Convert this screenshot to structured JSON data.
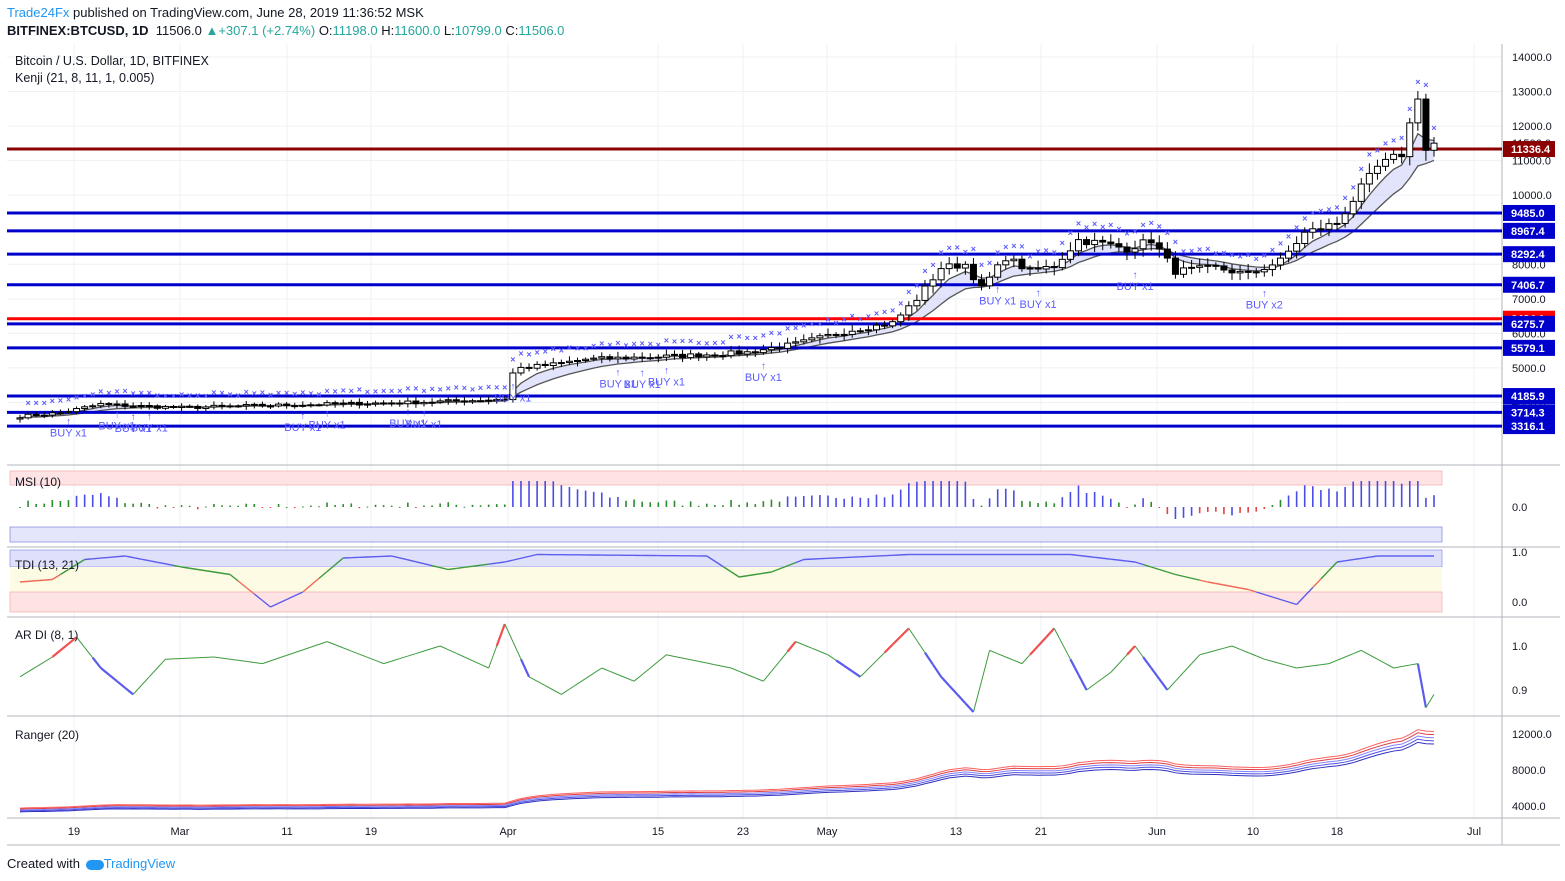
{
  "header": {
    "brand": "Trade24Fx",
    "published": "published on TradingView.com, June 28, 2019 11:36:52 MSK",
    "symbol": "BITFINEX:BTCUSD, 1D",
    "last": "11506.0",
    "change_arrow": "▲",
    "change": "+307.1 (+2.74%)",
    "o_label": "O:",
    "o": "11198.0",
    "h_label": "H:",
    "h": "11600.0",
    "l_label": "L:",
    "l": "10799.0",
    "c_label": "C:",
    "c": "11506.0"
  },
  "legend": {
    "title": "Bitcoin / U.S. Dollar, 1D, BITFINEX",
    "indicator": "Kenji (21, 8, 11, 1, 0.005)"
  },
  "footer": {
    "created": "Created with",
    "brand": "TradingView"
  },
  "colors": {
    "up": "#ffffff",
    "down": "#000000",
    "level_blue": "#0000cc",
    "level_darkred": "#8b0000",
    "level_red": "#ff0000",
    "marker": "#5b5bff",
    "band": "#c9cdf5",
    "green": "#2e8b2e",
    "red_line": "#f05a5a"
  },
  "chart_data": [
    {
      "type": "candlestick",
      "title": "Bitcoin / U.S. Dollar, 1D, BITFINEX",
      "x_ticks": [
        "19",
        "Mar",
        "11",
        "19",
        "Apr",
        "15",
        "23",
        "May",
        "13",
        "21",
        "Jun",
        "10",
        "18",
        "Jul"
      ],
      "y_ticks": [
        4000,
        5000,
        6000,
        7000,
        8000,
        9000,
        10000,
        11000,
        12000,
        13000,
        14000
      ],
      "y_tick_labels": [
        "4000.0",
        "5000.0",
        "6000.0",
        "7000.0",
        "8000.0",
        "9000.0",
        "10000.0",
        "11000.0",
        "12000.0",
        "13000.0",
        "14000.0"
      ],
      "ylim": [
        3200,
        14200
      ],
      "last_price_label": "11506.0",
      "levels": [
        {
          "value": 11336.4,
          "label": "11336.4",
          "color": "darkred"
        },
        {
          "value": 9485.0,
          "label": "9485.0",
          "color": "blue"
        },
        {
          "value": 8967.4,
          "label": "8967.4",
          "color": "blue"
        },
        {
          "value": 8292.4,
          "label": "8292.4",
          "color": "blue"
        },
        {
          "value": 7406.7,
          "label": "7406.7",
          "color": "blue"
        },
        {
          "value": 6424.1,
          "label": "6424.1",
          "color": "red"
        },
        {
          "value": 6275.7,
          "label": "6275.7",
          "color": "blue"
        },
        {
          "value": 5579.1,
          "label": "5579.1",
          "color": "blue"
        },
        {
          "value": 4185.9,
          "label": "4185.9",
          "color": "blue"
        },
        {
          "value": 3714.3,
          "label": "3714.3",
          "color": "blue"
        },
        {
          "value": 3316.1,
          "label": "3316.1",
          "color": "blue"
        }
      ],
      "anchor_closes": [
        {
          "day": 0,
          "value": 3600
        },
        {
          "day": 5,
          "value": 3700
        },
        {
          "day": 10,
          "value": 3950
        },
        {
          "day": 14,
          "value": 3900
        },
        {
          "day": 20,
          "value": 3850
        },
        {
          "day": 28,
          "value": 3900
        },
        {
          "day": 38,
          "value": 3950
        },
        {
          "day": 48,
          "value": 4000
        },
        {
          "day": 55,
          "value": 4050
        },
        {
          "day": 60,
          "value": 4100
        },
        {
          "day": 61,
          "value": 4850
        },
        {
          "day": 62,
          "value": 5000
        },
        {
          "day": 66,
          "value": 5100
        },
        {
          "day": 70,
          "value": 5250
        },
        {
          "day": 76,
          "value": 5300
        },
        {
          "day": 82,
          "value": 5350
        },
        {
          "day": 90,
          "value": 5450
        },
        {
          "day": 96,
          "value": 5700
        },
        {
          "day": 103,
          "value": 6100
        },
        {
          "day": 108,
          "value": 6300
        },
        {
          "day": 111,
          "value": 7000
        },
        {
          "day": 114,
          "value": 7900
        },
        {
          "day": 117,
          "value": 8000
        },
        {
          "day": 119,
          "value": 7300
        },
        {
          "day": 122,
          "value": 8200
        },
        {
          "day": 125,
          "value": 7800
        },
        {
          "day": 128,
          "value": 7950
        },
        {
          "day": 131,
          "value": 8700
        },
        {
          "day": 134,
          "value": 8600
        },
        {
          "day": 137,
          "value": 8450
        },
        {
          "day": 140,
          "value": 8700
        },
        {
          "day": 143,
          "value": 7800
        },
        {
          "day": 148,
          "value": 7900
        },
        {
          "day": 152,
          "value": 7700
        },
        {
          "day": 156,
          "value": 8100
        },
        {
          "day": 159,
          "value": 8900
        },
        {
          "day": 163,
          "value": 9200
        },
        {
          "day": 166,
          "value": 10200
        },
        {
          "day": 168,
          "value": 10800
        },
        {
          "day": 171,
          "value": 11200
        },
        {
          "day": 173,
          "value": 12900
        },
        {
          "day": 174,
          "value": 11300
        },
        {
          "day": 175,
          "value": 11506
        }
      ],
      "buy_signals": [
        {
          "day": 6,
          "label": "BUY x1"
        },
        {
          "day": 12,
          "label": "BUY x1"
        },
        {
          "day": 14,
          "label": "BUY x1"
        },
        {
          "day": 16,
          "label": "BUY x1"
        },
        {
          "day": 35,
          "label": "BUY x1"
        },
        {
          "day": 38,
          "label": "BUY x1"
        },
        {
          "day": 48,
          "label": "BUY x1"
        },
        {
          "day": 50,
          "label": "BUY x1"
        },
        {
          "day": 61,
          "label": "BUY x1"
        },
        {
          "day": 74,
          "label": "BUY x1"
        },
        {
          "day": 77,
          "label": "BUY x1"
        },
        {
          "day": 80,
          "label": "BUY x1"
        },
        {
          "day": 92,
          "label": "BUY x1"
        },
        {
          "day": 121,
          "label": "BUY x1"
        },
        {
          "day": 126,
          "label": "BUY x1"
        },
        {
          "day": 138,
          "label": "BUY x1"
        },
        {
          "day": 154,
          "label": "BUY x2"
        }
      ],
      "series_names": []
    },
    {
      "type": "histogram",
      "label": "MSI (10)",
      "y_tick_labels": [
        "0.0"
      ],
      "bands": [
        {
          "from": 0.0,
          "to": 0.35,
          "color": "pink"
        },
        {
          "from": 0.0,
          "to": -0.35,
          "color": "blue"
        }
      ]
    },
    {
      "type": "line",
      "label": "TDI (13, 21)",
      "y_ticks": [
        0.0,
        1.0
      ],
      "y_tick_labels": [
        "0.0",
        "1.0"
      ],
      "ylim": [
        -0.1,
        1.05
      ],
      "anchors": [
        {
          "day": 0,
          "value": 0.4
        },
        {
          "day": 4,
          "value": 0.45
        },
        {
          "day": 8,
          "value": 0.85
        },
        {
          "day": 13,
          "value": 0.92
        },
        {
          "day": 20,
          "value": 0.7
        },
        {
          "day": 26,
          "value": 0.55
        },
        {
          "day": 31,
          "value": -0.1
        },
        {
          "day": 35,
          "value": 0.2
        },
        {
          "day": 40,
          "value": 0.88
        },
        {
          "day": 46,
          "value": 0.92
        },
        {
          "day": 53,
          "value": 0.65
        },
        {
          "day": 60,
          "value": 0.8
        },
        {
          "day": 64,
          "value": 0.95
        },
        {
          "day": 85,
          "value": 0.92
        },
        {
          "day": 89,
          "value": 0.5
        },
        {
          "day": 93,
          "value": 0.6
        },
        {
          "day": 97,
          "value": 0.85
        },
        {
          "day": 110,
          "value": 0.95
        },
        {
          "day": 130,
          "value": 0.95
        },
        {
          "day": 138,
          "value": 0.8
        },
        {
          "day": 143,
          "value": 0.55
        },
        {
          "day": 147,
          "value": 0.4
        },
        {
          "day": 152,
          "value": 0.25
        },
        {
          "day": 158,
          "value": -0.05
        },
        {
          "day": 163,
          "value": 0.8
        },
        {
          "day": 168,
          "value": 0.92
        },
        {
          "day": 175,
          "value": 0.92
        }
      ]
    },
    {
      "type": "line",
      "label": "AR DI (8, 1)",
      "y_ticks": [
        0.9,
        1.0
      ],
      "y_tick_labels": [
        "0.9",
        "1.0"
      ],
      "ylim": [
        0.84,
        1.07
      ],
      "anchors": [
        {
          "day": 0,
          "value": 0.93
        },
        {
          "day": 4,
          "value": 0.975
        },
        {
          "day": 7,
          "value": 1.02
        },
        {
          "day": 10,
          "value": 0.95
        },
        {
          "day": 14,
          "value": 0.89
        },
        {
          "day": 18,
          "value": 0.97
        },
        {
          "day": 24,
          "value": 0.975
        },
        {
          "day": 30,
          "value": 0.96
        },
        {
          "day": 38,
          "value": 1.01
        },
        {
          "day": 45,
          "value": 0.96
        },
        {
          "day": 52,
          "value": 1.0
        },
        {
          "day": 58,
          "value": 0.95
        },
        {
          "day": 60,
          "value": 1.05
        },
        {
          "day": 63,
          "value": 0.93
        },
        {
          "day": 67,
          "value": 0.89
        },
        {
          "day": 72,
          "value": 0.95
        },
        {
          "day": 76,
          "value": 0.92
        },
        {
          "day": 80,
          "value": 0.98
        },
        {
          "day": 88,
          "value": 0.95
        },
        {
          "day": 92,
          "value": 0.92
        },
        {
          "day": 96,
          "value": 1.01
        },
        {
          "day": 100,
          "value": 0.98
        },
        {
          "day": 104,
          "value": 0.93
        },
        {
          "day": 110,
          "value": 1.04
        },
        {
          "day": 114,
          "value": 0.93
        },
        {
          "day": 118,
          "value": 0.85
        },
        {
          "day": 120,
          "value": 0.99
        },
        {
          "day": 124,
          "value": 0.96
        },
        {
          "day": 128,
          "value": 1.04
        },
        {
          "day": 132,
          "value": 0.9
        },
        {
          "day": 135,
          "value": 0.94
        },
        {
          "day": 138,
          "value": 1.0
        },
        {
          "day": 142,
          "value": 0.9
        },
        {
          "day": 146,
          "value": 0.98
        },
        {
          "day": 150,
          "value": 1.0
        },
        {
          "day": 154,
          "value": 0.97
        },
        {
          "day": 158,
          "value": 0.95
        },
        {
          "day": 162,
          "value": 0.96
        },
        {
          "day": 166,
          "value": 0.99
        },
        {
          "day": 170,
          "value": 0.95
        },
        {
          "day": 173,
          "value": 0.96
        },
        {
          "day": 174,
          "value": 0.86
        },
        {
          "day": 175,
          "value": 0.89
        }
      ]
    },
    {
      "type": "line",
      "label": "Ranger (20)",
      "y_ticks": [
        4000,
        8000,
        12000
      ],
      "y_tick_labels": [
        "4000.0",
        "8000.0",
        "12000.0"
      ],
      "ylim": [
        3000,
        13500
      ]
    }
  ]
}
